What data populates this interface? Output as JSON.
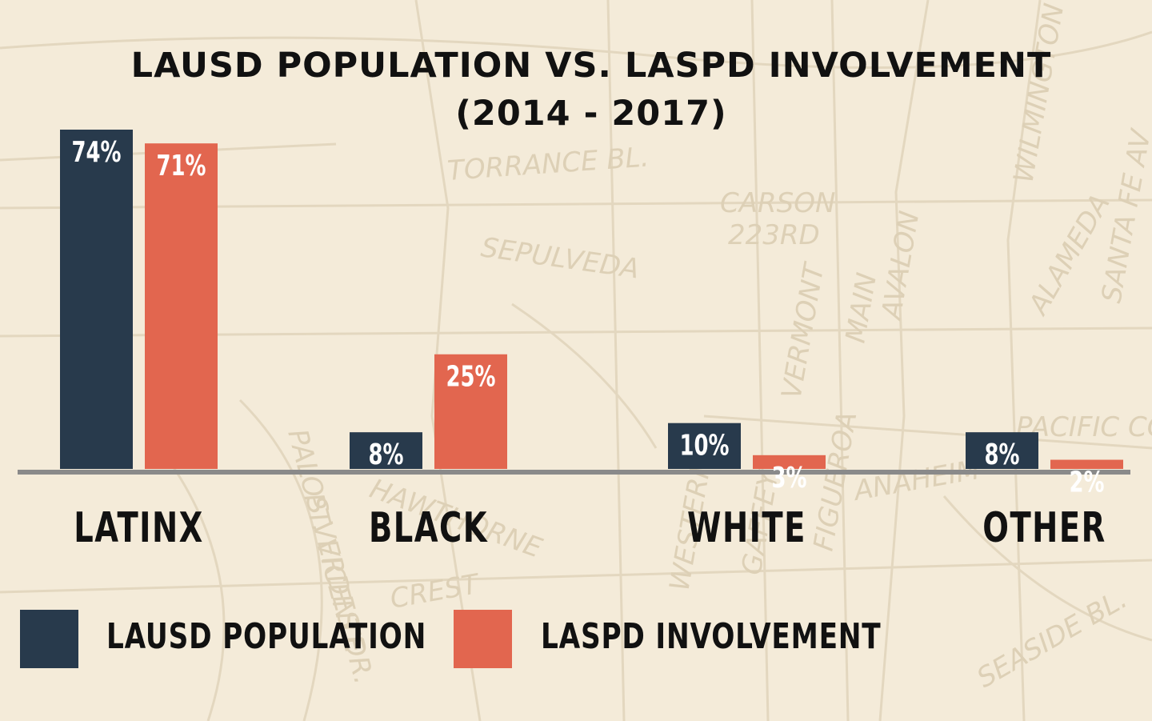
{
  "title_line1": "LAUSD POPULATION VS. LASPD INVOLVEMENT",
  "title_line2": "(2014 - 2017)",
  "colors": {
    "lausd": "#283a4c",
    "laspd": "#e2664f",
    "background": "#f4ebd9",
    "axis": "#8a8a8a"
  },
  "chart_data": {
    "type": "bar",
    "title": "LAUSD POPULATION VS. LASPD INVOLVEMENT (2014 - 2017)",
    "categories": [
      "LATINX",
      "BLACK",
      "WHITE",
      "OTHER"
    ],
    "series": [
      {
        "name": "LAUSD POPULATION",
        "values": [
          74,
          8,
          10,
          8
        ],
        "labels": [
          "74%",
          "8%",
          "10%",
          "8%"
        ]
      },
      {
        "name": "LASPD INVOLVEMENT",
        "values": [
          71,
          25,
          3,
          2
        ],
        "labels": [
          "71%",
          "25%",
          "3%",
          "2%"
        ]
      }
    ],
    "ylim": [
      0,
      74
    ],
    "grid": false,
    "legend_position": "bottom-left"
  },
  "map_labels": [
    "TORRANCE BL.",
    "SEPULVEDA",
    "CARSON",
    "223RD",
    "AVALON",
    "MAIN",
    "VERMONT",
    "ALAMEDA",
    "SANTA FE AV",
    "WILMINGTON",
    "ANAHEIM",
    "PACIFIC COAST",
    "HAWTHORNE",
    "CREST",
    "PALOS VERDES DR.",
    "PT. VICENTE",
    "SEASIDE BL.",
    "FIGUEROA",
    "GAFFEY",
    "WESTERN"
  ]
}
